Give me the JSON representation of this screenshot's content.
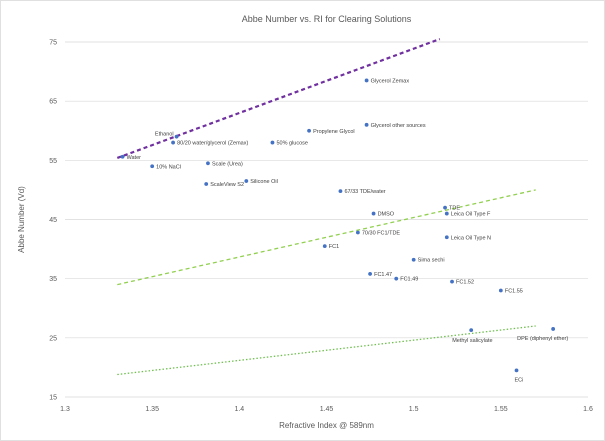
{
  "chart_data": {
    "type": "scatter",
    "title": "Abbe Number vs. RI for Clearing Solutions",
    "xlabel": "Refractive Index @ 589nm",
    "ylabel": "Abbe Number (Vd)",
    "xlim": [
      1.3,
      1.6
    ],
    "ylim": [
      15,
      75
    ],
    "x_ticks": [
      "1.3",
      "1.35",
      "1.4",
      "1.45",
      "1.5",
      "1.55",
      "1.6"
    ],
    "y_ticks": [
      "15",
      "25",
      "35",
      "45",
      "55",
      "65",
      "75"
    ],
    "grid": "horizontal",
    "legend": "none",
    "point_color": "#4472c4",
    "points": [
      {
        "x": 1.333,
        "y": 55.6,
        "label": "Water"
      },
      {
        "x": 1.364,
        "y": 59.0,
        "label": "Ethanol"
      },
      {
        "x": 1.362,
        "y": 58.0,
        "label": "80/20 water/glycerol (Zemax)"
      },
      {
        "x": 1.419,
        "y": 58.0,
        "label": "50% glucose"
      },
      {
        "x": 1.44,
        "y": 60.0,
        "label": "Propylene Glycol"
      },
      {
        "x": 1.473,
        "y": 68.5,
        "label": "Glycerol Zemax"
      },
      {
        "x": 1.473,
        "y": 61.0,
        "label": "Glycerol other sources"
      },
      {
        "x": 1.35,
        "y": 54.0,
        "label": "10% NaCl"
      },
      {
        "x": 1.382,
        "y": 54.5,
        "label": "Scale (Urea)"
      },
      {
        "x": 1.381,
        "y": 51.0,
        "label": "ScaleView S2"
      },
      {
        "x": 1.404,
        "y": 51.5,
        "label": "Silicone Oil"
      },
      {
        "x": 1.458,
        "y": 49.8,
        "label": "67/33 TDE/water"
      },
      {
        "x": 1.477,
        "y": 46.0,
        "label": "DMSO"
      },
      {
        "x": 1.518,
        "y": 47.0,
        "label": "TDE"
      },
      {
        "x": 1.519,
        "y": 46.0,
        "label": "Leica Oil Type F"
      },
      {
        "x": 1.468,
        "y": 42.8,
        "label": "70/30 FC1/TDE"
      },
      {
        "x": 1.519,
        "y": 42.0,
        "label": "Leica Oil Type N"
      },
      {
        "x": 1.449,
        "y": 40.5,
        "label": "FC1"
      },
      {
        "x": 1.5,
        "y": 38.2,
        "label": "Sima sechi"
      },
      {
        "x": 1.475,
        "y": 35.8,
        "label": "FC1.47"
      },
      {
        "x": 1.49,
        "y": 35.0,
        "label": "FC1.49"
      },
      {
        "x": 1.522,
        "y": 34.5,
        "label": "FC1.52"
      },
      {
        "x": 1.55,
        "y": 33.0,
        "label": "FC1.55"
      },
      {
        "x": 1.533,
        "y": 26.3,
        "label": "Methyl salicylate"
      },
      {
        "x": 1.58,
        "y": 26.5,
        "label": "DPE (diphenyl ether)"
      },
      {
        "x": 1.559,
        "y": 19.5,
        "label": "ECi"
      }
    ],
    "trendlines": [
      {
        "color": "#7030a0",
        "style": "dashed",
        "x": [
          1.33,
          1.515
        ],
        "y": [
          55.4,
          75.5
        ]
      },
      {
        "color": "#92d050",
        "style": "dashed",
        "x": [
          1.33,
          1.57
        ],
        "y": [
          34.0,
          50.0
        ]
      },
      {
        "color": "#70c050",
        "style": "dotted",
        "x": [
          1.33,
          1.57
        ],
        "y": [
          18.8,
          27.0
        ]
      }
    ]
  }
}
